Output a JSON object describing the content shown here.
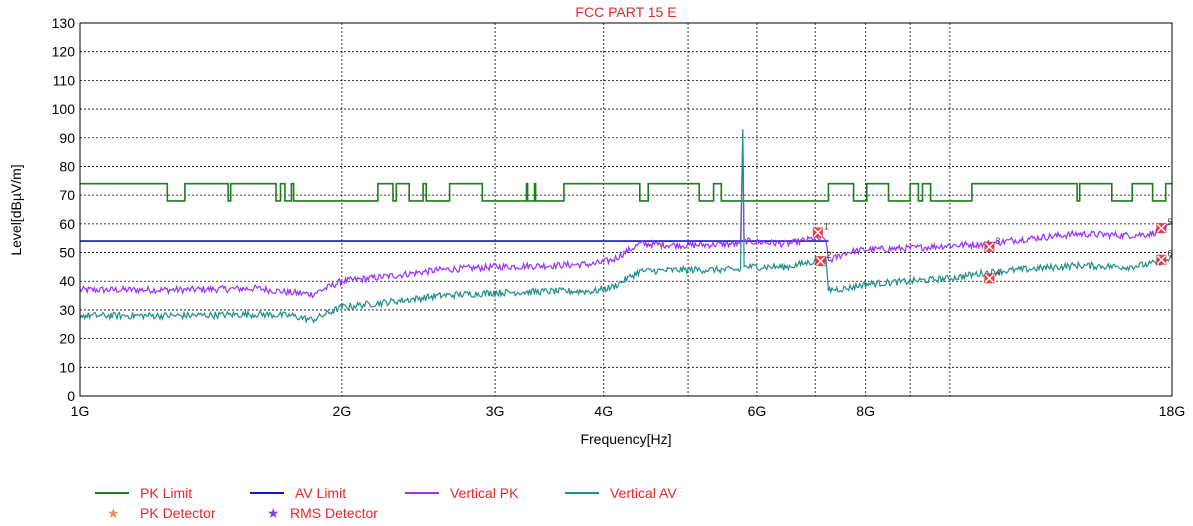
{
  "chart_data": {
    "type": "line",
    "title": "FCC PART 15 E",
    "xlabel": "Frequency[Hz]",
    "ylabel": "Level[dBµV/m]",
    "xscale": "log",
    "xlim": [
      1000000000.0,
      18000000000.0
    ],
    "ylim": [
      0,
      130
    ],
    "grid": true,
    "y_ticks": [
      0,
      10,
      20,
      30,
      40,
      50,
      60,
      70,
      80,
      90,
      100,
      110,
      120,
      130
    ],
    "x_ticks": [
      {
        "value": 1000000000.0,
        "label": "1G"
      },
      {
        "value": 2000000000.0,
        "label": "2G"
      },
      {
        "value": 3000000000.0,
        "label": "3G"
      },
      {
        "value": 4000000000.0,
        "label": "4G"
      },
      {
        "value": 6000000000.0,
        "label": "6G"
      },
      {
        "value": 8000000000.0,
        "label": "8G"
      },
      {
        "value": 18000000000.0,
        "label": "18G"
      }
    ],
    "x_extra_grid": [
      5000000000.0,
      7000000000.0,
      9000000000.0,
      10000000000.0
    ],
    "series": [
      {
        "name": "PK Limit",
        "color": "#1e7d1e",
        "style": "step",
        "points": [
          [
            1000000000.0,
            74
          ],
          [
            1260000000.0,
            74
          ],
          [
            1260000000.0,
            68
          ],
          [
            1320000000.0,
            68
          ],
          [
            1320000000.0,
            74
          ],
          [
            1480000000.0,
            74
          ],
          [
            1480000000.0,
            68
          ],
          [
            1490000000.0,
            68
          ],
          [
            1490000000.0,
            74
          ],
          [
            1680000000.0,
            74
          ],
          [
            1680000000.0,
            68
          ],
          [
            1700000000.0,
            68
          ],
          [
            1700000000.0,
            74
          ],
          [
            1720000000.0,
            74
          ],
          [
            1720000000.0,
            68
          ],
          [
            1750000000.0,
            68
          ],
          [
            1750000000.0,
            74
          ],
          [
            1760000000.0,
            74
          ],
          [
            1760000000.0,
            68
          ],
          [
            2200000000.0,
            68
          ],
          [
            2200000000.0,
            74
          ],
          [
            2290000000.0,
            74
          ],
          [
            2290000000.0,
            68
          ],
          [
            2310000000.0,
            68
          ],
          [
            2310000000.0,
            74
          ],
          [
            2390000000.0,
            74
          ],
          [
            2390000000.0,
            68
          ],
          [
            2480000000.0,
            68
          ],
          [
            2480000000.0,
            74
          ],
          [
            2500000000.0,
            74
          ],
          [
            2500000000.0,
            68
          ],
          [
            2660000000.0,
            68
          ],
          [
            2660000000.0,
            74
          ],
          [
            2900000000.0,
            74
          ],
          [
            2900000000.0,
            68
          ],
          [
            3260000000.0,
            68
          ],
          [
            3260000000.0,
            74
          ],
          [
            3270000000.0,
            74
          ],
          [
            3270000000.0,
            68
          ],
          [
            3330000000.0,
            68
          ],
          [
            3330000000.0,
            74
          ],
          [
            3340000000.0,
            74
          ],
          [
            3340000000.0,
            68
          ],
          [
            3600000000.0,
            68
          ],
          [
            3600000000.0,
            74
          ],
          [
            4400000000.0,
            74
          ],
          [
            4400000000.0,
            68
          ],
          [
            4500000000.0,
            68
          ],
          [
            4500000000.0,
            74
          ],
          [
            5150000000.0,
            74
          ],
          [
            5150000000.0,
            68
          ],
          [
            5350000000.0,
            68
          ],
          [
            5350000000.0,
            74
          ],
          [
            5460000000.0,
            74
          ],
          [
            5460000000.0,
            68
          ],
          [
            7250000000.0,
            68
          ],
          [
            7250000000.0,
            74
          ],
          [
            7750000000.0,
            74
          ],
          [
            7750000000.0,
            68
          ],
          [
            8025000000.0,
            68
          ],
          [
            8025000000.0,
            74
          ],
          [
            8500000000.0,
            74
          ],
          [
            8500000000.0,
            68
          ],
          [
            9000000000.0,
            68
          ],
          [
            9000000000.0,
            74
          ],
          [
            9200000000.0,
            74
          ],
          [
            9200000000.0,
            68
          ],
          [
            9300000000.0,
            68
          ],
          [
            9300000000.0,
            74
          ],
          [
            9500000000.0,
            74
          ],
          [
            9500000000.0,
            68
          ],
          [
            10600000000.0,
            68
          ],
          [
            10600000000.0,
            74
          ],
          [
            14000000000.0,
            74
          ],
          [
            14000000000.0,
            68
          ],
          [
            14100000000.0,
            68
          ],
          [
            14100000000.0,
            74
          ],
          [
            15350000000.0,
            74
          ],
          [
            15350000000.0,
            68
          ],
          [
            16200000000.0,
            68
          ],
          [
            16200000000.0,
            74
          ],
          [
            17100000000.0,
            74
          ],
          [
            17100000000.0,
            68
          ],
          [
            17700000000.0,
            68
          ],
          [
            17700000000.0,
            74
          ],
          [
            18000000000.0,
            74
          ]
        ]
      },
      {
        "name": "AV Limit",
        "color": "#1010d8",
        "style": "line",
        "points": [
          [
            1000000000.0,
            54
          ],
          [
            7250000000.0,
            54
          ]
        ]
      },
      {
        "name": "Vertical PK",
        "color": "#9b30ff",
        "style": "noisy",
        "points": [
          [
            1000000000.0,
            37
          ],
          [
            1300000000.0,
            37
          ],
          [
            1600000000.0,
            37.5
          ],
          [
            1750000000.0,
            36
          ],
          [
            1850000000.0,
            35.5
          ],
          [
            2000000000.0,
            40
          ],
          [
            2300000000.0,
            42
          ],
          [
            2600000000.0,
            44
          ],
          [
            3000000000.0,
            45
          ],
          [
            3500000000.0,
            45.5
          ],
          [
            3900000000.0,
            46
          ],
          [
            4100000000.0,
            47.5
          ],
          [
            4400000000.0,
            53
          ],
          [
            5000000000.0,
            52.5
          ],
          [
            5600000000.0,
            53
          ],
          [
            5745000000.0,
            53
          ],
          [
            5780000000.0,
            92
          ],
          [
            5800000000.0,
            54
          ],
          [
            6500000000.0,
            53
          ],
          [
            7000000000.0,
            55
          ],
          [
            7200000000.0,
            54.5
          ],
          [
            7250000000.0,
            47
          ],
          [
            7600000000.0,
            50
          ],
          [
            8000000000.0,
            51
          ],
          [
            9000000000.0,
            51.5
          ],
          [
            10000000000.0,
            52.5
          ],
          [
            11000000000.0,
            53
          ],
          [
            12000000000.0,
            54.5
          ],
          [
            14000000000.0,
            56.5
          ],
          [
            16000000000.0,
            56
          ],
          [
            17000000000.0,
            56.5
          ],
          [
            17600000000.0,
            58
          ],
          [
            18000000000.0,
            60
          ]
        ]
      },
      {
        "name": "Vertical AV",
        "color": "#1f8f8a",
        "style": "noisy",
        "points": [
          [
            1000000000.0,
            28
          ],
          [
            1300000000.0,
            28
          ],
          [
            1600000000.0,
            28.5
          ],
          [
            1750000000.0,
            28
          ],
          [
            1850000000.0,
            26.5
          ],
          [
            2000000000.0,
            31
          ],
          [
            2300000000.0,
            33
          ],
          [
            2600000000.0,
            35
          ],
          [
            3000000000.0,
            36
          ],
          [
            3500000000.0,
            36.5
          ],
          [
            3900000000.0,
            36.5
          ],
          [
            4100000000.0,
            38
          ],
          [
            4400000000.0,
            43.5
          ],
          [
            5000000000.0,
            44
          ],
          [
            5600000000.0,
            44
          ],
          [
            5745000000.0,
            44
          ],
          [
            5780000000.0,
            93
          ],
          [
            5800000000.0,
            45
          ],
          [
            6500000000.0,
            45
          ],
          [
            7000000000.0,
            47
          ],
          [
            7200000000.0,
            47.5
          ],
          [
            7250000000.0,
            37
          ],
          [
            7600000000.0,
            37.5
          ],
          [
            8000000000.0,
            39
          ],
          [
            9000000000.0,
            40
          ],
          [
            10000000000.0,
            41
          ],
          [
            11000000000.0,
            43
          ],
          [
            12000000000.0,
            44
          ],
          [
            14000000000.0,
            45.5
          ],
          [
            16000000000.0,
            45
          ],
          [
            17000000000.0,
            46
          ],
          [
            17600000000.0,
            47
          ],
          [
            18000000000.0,
            48
          ]
        ]
      }
    ],
    "markers": [
      {
        "label": "1",
        "x": 7050000000.0,
        "y": 57,
        "detector": "PK"
      },
      {
        "label": "2",
        "x": 7100000000.0,
        "y": 47,
        "detector": "RMS"
      },
      {
        "label": "3",
        "x": 11100000000.0,
        "y": 52,
        "detector": "PK"
      },
      {
        "label": "4",
        "x": 11100000000.0,
        "y": 41,
        "detector": "RMS"
      },
      {
        "label": "5",
        "x": 17500000000.0,
        "y": 58.5,
        "detector": "PK"
      },
      {
        "label": "6",
        "x": 17500000000.0,
        "y": 47.5,
        "detector": "RMS"
      }
    ],
    "marker_color": "#e8252b",
    "legend": [
      {
        "name": "PK Limit",
        "kind": "line",
        "color": "#1e7d1e"
      },
      {
        "name": "AV Limit",
        "kind": "line",
        "color": "#1010d8"
      },
      {
        "name": "Vertical PK",
        "kind": "line",
        "color": "#9b30ff"
      },
      {
        "name": "Vertical AV",
        "kind": "line",
        "color": "#1f8f8a"
      },
      {
        "name": "PK Detector",
        "kind": "star",
        "color": "#f08a6a"
      },
      {
        "name": "RMS Detector",
        "kind": "star",
        "color": "#8a3fd8"
      }
    ],
    "legend_label_color": "#e8252b",
    "legend_position": "bottom-left"
  }
}
